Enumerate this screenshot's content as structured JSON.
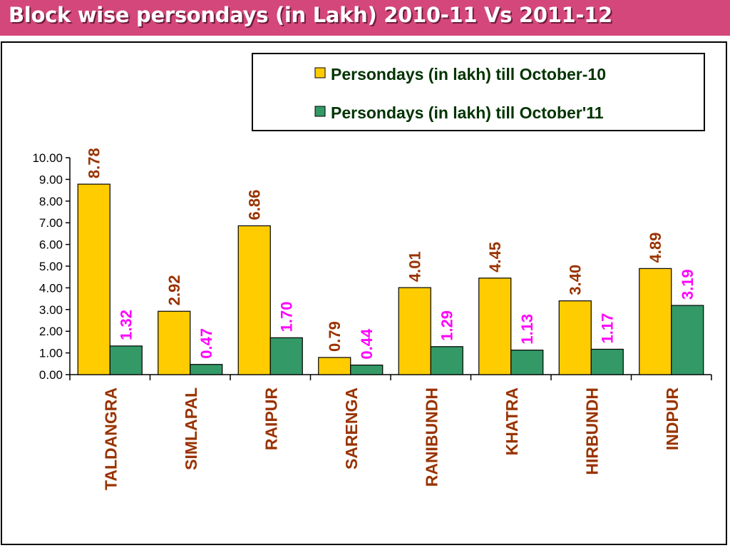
{
  "title": "Block wise  persondays (in Lakh) 2010-11 Vs 2011-12",
  "colors": {
    "title_bg": "#d4477a",
    "series1_fill": "#ffcc00",
    "series2_fill": "#339966",
    "series1_label": "#993300",
    "series2_label": "#ff00ff",
    "legend_text": "#003300",
    "category_label": "#993300"
  },
  "chart_data": {
    "type": "bar",
    "title": "Block wise  persondays (in Lakh) 2010-11 Vs 2011-12",
    "categories": [
      "TALDANGRA",
      "SIMLAPAL",
      "RAIPUR",
      "SARENGA",
      "RANIBUNDH",
      "KHATRA",
      "HIRBUNDH",
      "INDPUR"
    ],
    "series": [
      {
        "name": "Persondays (in lakh)  till October-10",
        "values": [
          8.78,
          2.92,
          6.86,
          0.79,
          4.01,
          4.45,
          3.4,
          4.89
        ]
      },
      {
        "name": "Persondays (in lakh) till October'11",
        "values": [
          1.32,
          0.47,
          1.7,
          0.44,
          1.29,
          1.13,
          1.17,
          3.19
        ]
      }
    ],
    "ylim": [
      0,
      10
    ],
    "yticks": [
      "0.00",
      "1.00",
      "2.00",
      "3.00",
      "4.00",
      "5.00",
      "6.00",
      "7.00",
      "8.00",
      "9.00",
      "10.00"
    ],
    "xlabel": "",
    "ylabel": "",
    "grid": false,
    "legend_position": "top-right",
    "data_labels": true
  }
}
